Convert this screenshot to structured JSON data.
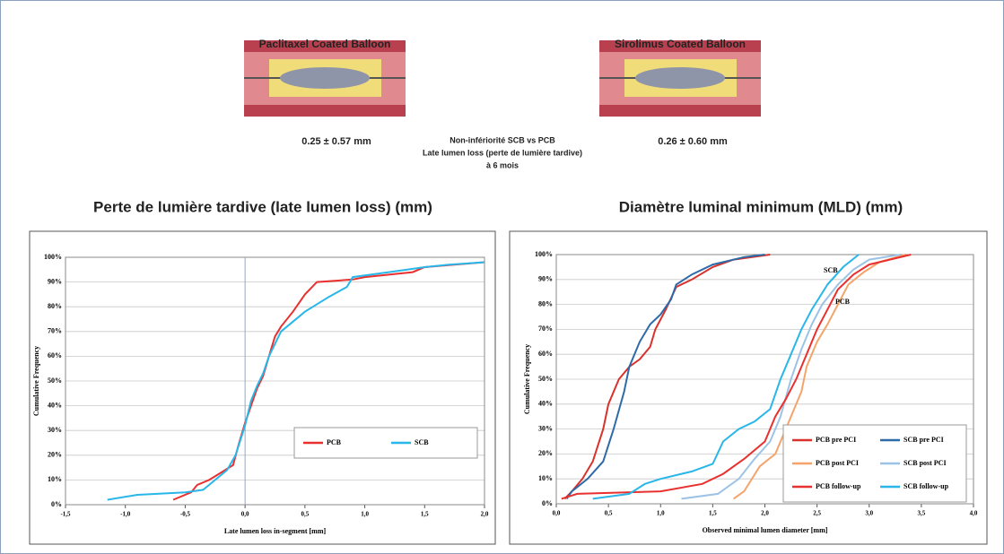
{
  "header": {
    "illustrations": [
      {
        "label": "Paclitaxel Coated Balloon",
        "result": "0.25 ± 0.57 mm"
      },
      {
        "label": "Sirolimus Coated Balloon",
        "result": "0.26 ± 0.60 mm"
      }
    ],
    "comparison": [
      "Non-infériorité SCB vs PCB",
      "Late lumen loss (perte de lumière tardive)",
      "à 6 mois"
    ]
  },
  "chart_data": [
    {
      "type": "line",
      "title": "Perte de lumière tardive (late lumen loss) (mm)",
      "x_label": "Late lumen loss in-segment [mm]",
      "y_label": "Cumulative Frequency",
      "xlim": [
        -1.5,
        2.0
      ],
      "xticks": [
        {
          "value": -1.5,
          "label": "-1,5"
        },
        {
          "value": -1.0,
          "label": "-1,0"
        },
        {
          "value": -0.5,
          "label": "-0,5"
        },
        {
          "value": 0,
          "label": "0,0"
        },
        {
          "value": 0.5,
          "label": "0,5"
        },
        {
          "value": 1.0,
          "label": "1,0"
        },
        {
          "value": 1.5,
          "label": "1,5"
        },
        {
          "value": 2.0,
          "label": "2,0"
        }
      ],
      "ylim": [
        0,
        100
      ],
      "yticks": [
        {
          "value": 0,
          "label": "0%"
        },
        {
          "value": 10,
          "label": "10%"
        },
        {
          "value": 20,
          "label": "20%"
        },
        {
          "value": 30,
          "label": "30%"
        },
        {
          "value": 40,
          "label": "40%"
        },
        {
          "value": 50,
          "label": "50%"
        },
        {
          "value": 60,
          "label": "60%"
        },
        {
          "value": 70,
          "label": "70%"
        },
        {
          "value": 80,
          "label": "80%"
        },
        {
          "value": 90,
          "label": "90%"
        },
        {
          "value": 100,
          "label": "100%"
        }
      ],
      "grid": true,
      "legend": "center right",
      "series": [
        {
          "name": "PCB",
          "color": "#e8312f",
          "x": [
            -0.6,
            -0.45,
            -0.4,
            -0.3,
            -0.2,
            -0.1,
            -0.05,
            0,
            0.05,
            0.1,
            0.15,
            0.2,
            0.25,
            0.3,
            0.4,
            0.5,
            0.6,
            0.9,
            1.0,
            1.4,
            1.5,
            2.0
          ],
          "values": [
            2,
            5,
            8,
            10,
            13,
            16,
            25,
            33,
            40,
            47,
            52,
            60,
            68,
            72,
            78,
            85,
            90,
            91,
            92,
            94,
            96,
            98
          ]
        },
        {
          "name": "SCB",
          "color": "#29b6e8",
          "x": [
            -1.15,
            -0.9,
            -0.5,
            -0.35,
            -0.25,
            -0.15,
            -0.08,
            0,
            0.05,
            0.1,
            0.15,
            0.2,
            0.25,
            0.3,
            0.4,
            0.5,
            0.7,
            0.85,
            0.9,
            1.2,
            1.5,
            1.7,
            2.0
          ],
          "values": [
            2,
            4,
            5,
            6,
            10,
            14,
            20,
            32,
            42,
            48,
            53,
            60,
            65,
            70,
            74,
            78,
            84,
            88,
            92,
            94,
            96,
            97,
            98
          ]
        }
      ]
    },
    {
      "type": "line",
      "title": "Diamètre luminal minimum (MLD) (mm)",
      "x_label": "Observed minimal lumen diameter [mm]",
      "y_label": "Cumulative Frequency",
      "xlim": [
        0,
        4.0
      ],
      "xticks": [
        {
          "value": 0,
          "label": "0,0"
        },
        {
          "value": 0.5,
          "label": "0,5"
        },
        {
          "value": 1.0,
          "label": "1,0"
        },
        {
          "value": 1.5,
          "label": "1,5"
        },
        {
          "value": 2.0,
          "label": "2,0"
        },
        {
          "value": 2.5,
          "label": "2,5"
        },
        {
          "value": 3.0,
          "label": "3,0"
        },
        {
          "value": 3.5,
          "label": "3,5"
        },
        {
          "value": 4.0,
          "label": "4,0"
        }
      ],
      "ylim": [
        0,
        100
      ],
      "yticks": [
        {
          "value": 0,
          "label": "0%"
        },
        {
          "value": 10,
          "label": "10%"
        },
        {
          "value": 20,
          "label": "20%"
        },
        {
          "value": 30,
          "label": "30%"
        },
        {
          "value": 40,
          "label": "40%"
        },
        {
          "value": 50,
          "label": "50%"
        },
        {
          "value": 60,
          "label": "60%"
        },
        {
          "value": 70,
          "label": "70%"
        },
        {
          "value": 80,
          "label": "80%"
        },
        {
          "value": 90,
          "label": "90%"
        },
        {
          "value": 100,
          "label": "100%"
        }
      ],
      "grid": true,
      "legend": "lower right",
      "annotations": [
        "SCB",
        "PCB"
      ],
      "series": [
        {
          "name": "PCB pre PCI",
          "color": "#d9312b",
          "x": [
            0.08,
            0.15,
            0.25,
            0.35,
            0.45,
            0.5,
            0.6,
            0.7,
            0.8,
            0.9,
            0.95,
            1.05,
            1.15,
            1.3,
            1.5,
            1.7,
            2.05
          ],
          "values": [
            2,
            5,
            10,
            17,
            30,
            40,
            50,
            55,
            58,
            63,
            70,
            78,
            87,
            90,
            95,
            98,
            100
          ]
        },
        {
          "name": "SCB pre PCI",
          "color": "#2f6aa8",
          "x": [
            0.1,
            0.15,
            0.3,
            0.45,
            0.55,
            0.65,
            0.7,
            0.8,
            0.9,
            1.0,
            1.1,
            1.15,
            1.3,
            1.5,
            1.8,
            2.0
          ],
          "values": [
            2,
            5,
            10,
            17,
            30,
            45,
            55,
            65,
            72,
            76,
            82,
            88,
            92,
            96,
            99,
            100
          ]
        },
        {
          "name": "PCB post PCI",
          "color": "#f4a46a",
          "x": [
            1.7,
            1.8,
            1.95,
            2.1,
            2.2,
            2.35,
            2.4,
            2.5,
            2.6,
            2.7,
            2.8,
            2.95,
            3.1,
            3.35
          ],
          "values": [
            2,
            5,
            15,
            20,
            30,
            45,
            55,
            65,
            72,
            80,
            88,
            93,
            97,
            100
          ]
        },
        {
          "name": "SCB post PCI",
          "color": "#9cc3e6",
          "x": [
            1.2,
            1.55,
            1.75,
            1.9,
            2.05,
            2.15,
            2.25,
            2.35,
            2.45,
            2.55,
            2.7,
            2.85,
            3.0,
            3.3
          ],
          "values": [
            2,
            4,
            10,
            18,
            25,
            35,
            50,
            62,
            72,
            80,
            88,
            94,
            98,
            100
          ]
        },
        {
          "name": "PCB follow-up",
          "color": "#e8312f",
          "x": [
            0.05,
            0.2,
            1.0,
            1.4,
            1.6,
            1.8,
            2.0,
            2.1,
            2.2,
            2.3,
            2.4,
            2.5,
            2.6,
            2.7,
            2.85,
            3.0,
            3.4
          ],
          "values": [
            2,
            4,
            5,
            8,
            12,
            18,
            25,
            35,
            42,
            50,
            60,
            70,
            78,
            86,
            92,
            96,
            100
          ]
        },
        {
          "name": "SCB follow-up",
          "color": "#29b6e8",
          "x": [
            0.35,
            0.7,
            0.85,
            1.0,
            1.3,
            1.5,
            1.6,
            1.75,
            1.9,
            2.05,
            2.15,
            2.25,
            2.35,
            2.45,
            2.6,
            2.75,
            2.9
          ],
          "values": [
            2,
            4,
            8,
            10,
            13,
            16,
            25,
            30,
            33,
            38,
            50,
            60,
            70,
            78,
            88,
            95,
            100
          ]
        }
      ]
    }
  ]
}
